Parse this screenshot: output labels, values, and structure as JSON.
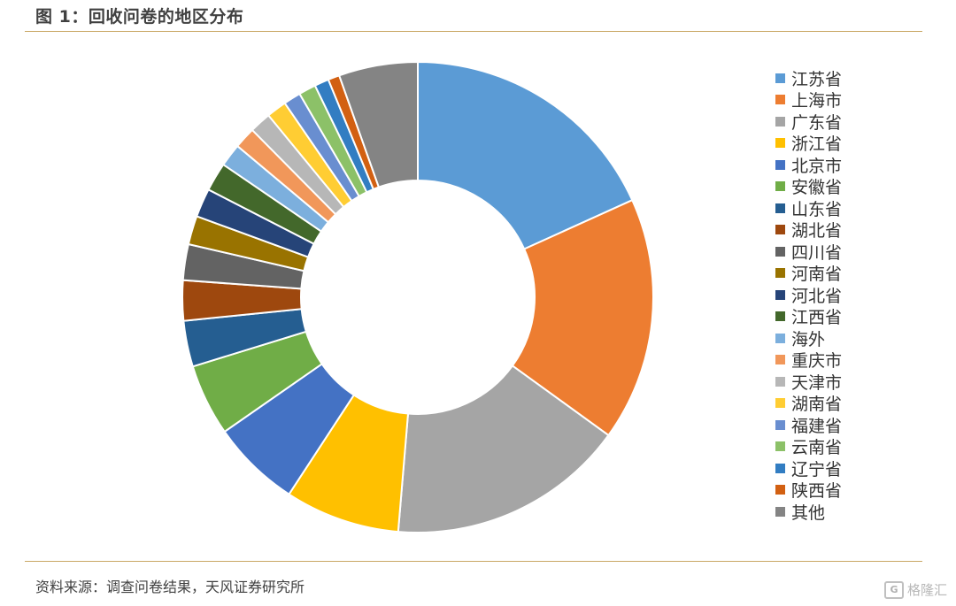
{
  "header": {
    "title": "图 1：回收问卷的地区分布"
  },
  "footer": {
    "source": "资料来源：调查问卷结果，天风证券研究所"
  },
  "watermark": {
    "text": "格隆汇",
    "mark": "G"
  },
  "chart_data": {
    "type": "pie",
    "variant": "donut",
    "legend_position": "right",
    "slices": [
      {
        "label": "江苏省",
        "value": 18.5,
        "color": "#5b9bd5"
      },
      {
        "label": "上海市",
        "value": 17.0,
        "color": "#ed7d31"
      },
      {
        "label": "广东省",
        "value": 16.6,
        "color": "#a5a5a5"
      },
      {
        "label": "浙江省",
        "value": 8.0,
        "color": "#ffc000"
      },
      {
        "label": "北京市",
        "value": 6.2,
        "color": "#4472c4"
      },
      {
        "label": "安徽省",
        "value": 5.0,
        "color": "#70ad47"
      },
      {
        "label": "山东省",
        "value": 3.2,
        "color": "#255e91"
      },
      {
        "label": "湖北省",
        "value": 2.8,
        "color": "#9e480e"
      },
      {
        "label": "四川省",
        "value": 2.5,
        "color": "#636363"
      },
      {
        "label": "河南省",
        "value": 2.0,
        "color": "#997300"
      },
      {
        "label": "河北省",
        "value": 2.0,
        "color": "#264478"
      },
      {
        "label": "江西省",
        "value": 2.0,
        "color": "#43682b"
      },
      {
        "label": "海外",
        "value": 1.6,
        "color": "#7cafdd"
      },
      {
        "label": "重庆市",
        "value": 1.5,
        "color": "#f1975a"
      },
      {
        "label": "天津市",
        "value": 1.5,
        "color": "#b7b7b7"
      },
      {
        "label": "湖南省",
        "value": 1.4,
        "color": "#ffcd33"
      },
      {
        "label": "福建省",
        "value": 1.2,
        "color": "#698ed0"
      },
      {
        "label": "云南省",
        "value": 1.2,
        "color": "#8cc168"
      },
      {
        "label": "辽宁省",
        "value": 1.0,
        "color": "#327dc2"
      },
      {
        "label": "陕西省",
        "value": 0.8,
        "color": "#d26012"
      },
      {
        "label": "其他",
        "value": 5.5,
        "color": "#848484"
      }
    ]
  }
}
